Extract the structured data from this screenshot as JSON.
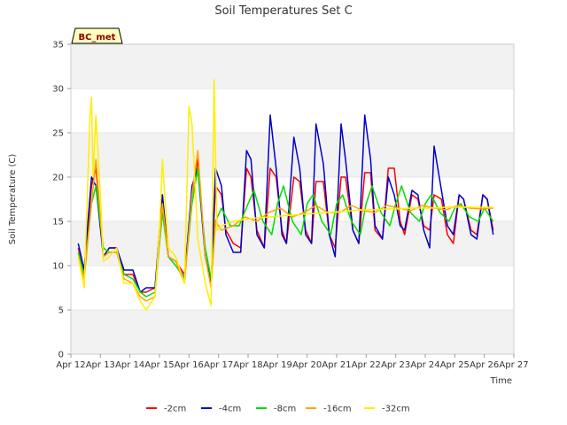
{
  "chart_data": {
    "type": "line",
    "title": "Soil Temperatures Set C",
    "xlabel": "Time",
    "ylabel": "Soil Temperature (C)",
    "badge": "BC_met",
    "x_ticks": [
      "Apr 12",
      "Apr 13",
      "Apr 14",
      "Apr 15",
      "Apr 16",
      "Apr 17",
      "Apr 18",
      "Apr 19",
      "Apr 20",
      "Apr 21",
      "Apr 22",
      "Apr 23",
      "Apr 24",
      "Apr 25",
      "Apr 26",
      "Apr 27"
    ],
    "xlim": [
      12,
      27
    ],
    "ylim": [
      0,
      35
    ],
    "y_ticks": [
      0,
      5,
      10,
      15,
      20,
      25,
      30,
      35
    ],
    "grid": "horizontal bands",
    "legend_position": "bottom",
    "series": [
      {
        "name": "-2cm",
        "color": "#ff0000",
        "x": [
          12.25,
          12.45,
          12.7,
          12.85,
          13.1,
          13.3,
          13.55,
          13.8,
          14.1,
          14.35,
          14.55,
          14.85,
          15.1,
          15.3,
          15.55,
          15.85,
          16.1,
          16.3,
          16.55,
          16.75,
          16.9,
          17.1,
          17.25,
          17.5,
          17.75,
          17.95,
          18.1,
          18.3,
          18.55,
          18.75,
          18.95,
          19.15,
          19.3,
          19.55,
          19.75,
          19.95,
          20.15,
          20.3,
          20.55,
          20.75,
          20.95,
          21.15,
          21.3,
          21.55,
          21.75,
          21.95,
          22.15,
          22.3,
          22.55,
          22.75,
          22.95,
          23.15,
          23.3,
          23.55,
          23.75,
          23.95,
          24.15,
          24.3,
          24.55,
          24.75,
          24.95,
          25.15,
          25.3,
          25.55,
          25.75,
          25.95,
          26.1,
          26.3
        ],
        "y": [
          12,
          9.5,
          19,
          21,
          11,
          12,
          12,
          9,
          9,
          7,
          7,
          7.5,
          18,
          11,
          10.5,
          9,
          18,
          22,
          11,
          8,
          19,
          18,
          14,
          12.5,
          12,
          21,
          20,
          14,
          12,
          21,
          20,
          14,
          12.5,
          20,
          19.5,
          14,
          12.5,
          19.5,
          19.5,
          13.5,
          12,
          20,
          20,
          14,
          12.5,
          20.5,
          20.5,
          14,
          13,
          21,
          21,
          15,
          13.5,
          18,
          17.5,
          14.5,
          14,
          18,
          17.5,
          13.5,
          12.5,
          18,
          17.5,
          14,
          13.5,
          18,
          17.5,
          14
        ]
      },
      {
        "name": "-4cm",
        "color": "#0000cc",
        "x": [
          12.25,
          12.45,
          12.7,
          12.85,
          13.1,
          13.3,
          13.55,
          13.8,
          14.1,
          14.35,
          14.55,
          14.85,
          15.1,
          15.3,
          15.55,
          15.85,
          16.1,
          16.3,
          16.55,
          16.75,
          16.9,
          17.1,
          17.25,
          17.5,
          17.75,
          17.95,
          18.1,
          18.3,
          18.55,
          18.75,
          18.95,
          19.15,
          19.3,
          19.55,
          19.75,
          19.95,
          20.15,
          20.3,
          20.55,
          20.75,
          20.95,
          21.15,
          21.3,
          21.55,
          21.75,
          21.95,
          22.15,
          22.3,
          22.55,
          22.75,
          22.95,
          23.15,
          23.3,
          23.55,
          23.75,
          23.95,
          24.15,
          24.3,
          24.55,
          24.75,
          24.95,
          25.15,
          25.3,
          25.55,
          25.75,
          25.95,
          26.1,
          26.3
        ],
        "y": [
          12.5,
          9.5,
          20,
          19,
          11,
          12,
          12,
          9.5,
          9.5,
          7,
          7.5,
          7.5,
          18,
          11,
          10.5,
          8.5,
          19,
          21,
          11,
          8,
          21,
          19,
          13.5,
          11.5,
          11.5,
          23,
          22,
          13.5,
          12,
          27,
          21,
          13.5,
          12.5,
          24.5,
          21,
          13.5,
          12.5,
          26,
          21.5,
          13.5,
          11,
          26,
          22,
          14,
          12.5,
          27,
          22,
          14.5,
          13,
          20,
          18,
          14.5,
          14,
          18.5,
          18,
          14,
          12,
          23.5,
          18.5,
          14.5,
          13.5,
          18,
          17.5,
          13.5,
          13,
          18,
          17.5,
          13.5
        ]
      },
      {
        "name": "-8cm",
        "color": "#00dd00",
        "x": [
          12.25,
          12.45,
          12.7,
          12.85,
          13.1,
          13.3,
          13.55,
          13.8,
          14.1,
          14.35,
          14.55,
          14.85,
          15.1,
          15.3,
          15.55,
          15.85,
          16.1,
          16.3,
          16.55,
          16.75,
          16.9,
          17.1,
          17.4,
          17.7,
          18.0,
          18.2,
          18.5,
          18.8,
          19.0,
          19.2,
          19.5,
          19.8,
          20.0,
          20.2,
          20.5,
          20.8,
          21.0,
          21.2,
          21.5,
          21.8,
          22.0,
          22.2,
          22.5,
          22.8,
          23.0,
          23.2,
          23.5,
          23.8,
          24.0,
          24.2,
          24.5,
          24.8,
          25.0,
          25.2,
          25.5,
          25.8,
          26.0,
          26.3
        ],
        "y": [
          11.5,
          9,
          17,
          19,
          12,
          11.5,
          11.5,
          9,
          8.5,
          7,
          6.5,
          7,
          16,
          11,
          10,
          8.5,
          17,
          21,
          12,
          8.5,
          15,
          16.5,
          14.5,
          14.5,
          17,
          18.5,
          15,
          13.5,
          17,
          19,
          15,
          13.5,
          17,
          18,
          15,
          13.5,
          17,
          18,
          15,
          13.5,
          17,
          19,
          16,
          14.5,
          17,
          19,
          16,
          15,
          17,
          18,
          16,
          15,
          16.5,
          17,
          15.5,
          15,
          16.5,
          15
        ]
      },
      {
        "name": "-16cm",
        "color": "#ffa500",
        "x": [
          12.25,
          12.45,
          12.7,
          12.85,
          13.1,
          13.3,
          13.55,
          13.8,
          14.1,
          14.35,
          14.55,
          14.85,
          15.1,
          15.3,
          15.55,
          15.85,
          16.1,
          16.3,
          16.55,
          16.75,
          16.9,
          17.1,
          17.5,
          17.9,
          18.3,
          18.7,
          19.1,
          19.5,
          19.9,
          20.3,
          20.7,
          21.1,
          21.5,
          21.9,
          22.3,
          22.7,
          23.1,
          23.5,
          23.9,
          24.3,
          24.7,
          25.1,
          25.5,
          25.9,
          26.3
        ],
        "y": [
          11,
          8.5,
          17,
          22,
          11,
          11.5,
          11.5,
          8.5,
          8,
          6.5,
          6,
          6.5,
          17,
          11,
          10.5,
          8,
          18,
          23,
          11,
          7.5,
          15,
          14,
          14.5,
          15.5,
          15,
          16,
          16.5,
          15.5,
          16,
          16.8,
          16,
          16,
          16.8,
          16.2,
          16,
          16.8,
          16.5,
          16.2,
          16.8,
          16.5,
          16.3,
          16.8,
          16.5,
          16.4,
          16.5
        ]
      },
      {
        "name": "-32cm",
        "color": "#ffee00",
        "x": [
          12.25,
          12.45,
          12.65,
          12.7,
          12.75,
          12.85,
          13.0,
          13.1,
          13.3,
          13.55,
          13.8,
          14.1,
          14.35,
          14.55,
          14.85,
          15.0,
          15.1,
          15.3,
          15.55,
          15.85,
          16.0,
          16.1,
          16.3,
          16.55,
          16.75,
          16.85,
          16.95,
          17.1,
          17.5,
          17.9,
          18.3,
          18.7,
          19.1,
          19.5,
          19.9,
          20.3,
          20.7,
          21.1,
          21.5,
          21.9,
          22.3,
          22.7,
          23.1,
          23.5,
          23.9,
          24.3,
          24.7,
          25.1,
          25.5,
          25.9,
          26.3
        ],
        "y": [
          11,
          7.5,
          27,
          29,
          20,
          27,
          18,
          10.5,
          11,
          12,
          8,
          8,
          6,
          5,
          6.5,
          14,
          22,
          12,
          11,
          8,
          28,
          26,
          13,
          8,
          5.5,
          31,
          14,
          14.5,
          15,
          15.2,
          15.4,
          15.5,
          15.6,
          15.7,
          15.8,
          15.9,
          16,
          16.1,
          16.2,
          16.3,
          16.3,
          16.4,
          16.4,
          16.5,
          16.5,
          16.5,
          16.6,
          16.6,
          16.6,
          16.6,
          16.6
        ]
      }
    ]
  }
}
